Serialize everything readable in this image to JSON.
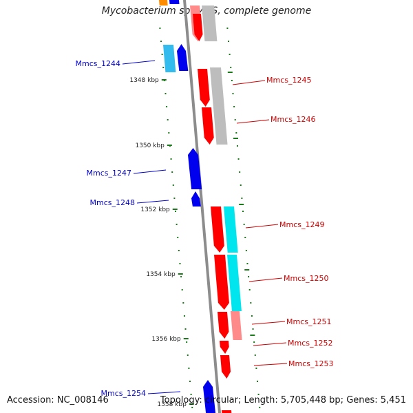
{
  "title": "Mycobacterium sp. MCS, complete genome",
  "footer": {
    "accession": "Accession: NC_008146",
    "topology": "Topology: circular;",
    "length": "Length: 5,705,448 bp;",
    "genes": "Genes: 5,451"
  },
  "colors": {
    "backbone": "#8c8c8c",
    "tick": "#1a7a1a",
    "minus_label": "#0000cc",
    "plus_label": "#cc0000",
    "gene_red": "#ff0000",
    "gene_blue": "#0000ee",
    "gene_cyan": "#00e5ee",
    "gene_grey": "#bdbdbd",
    "gene_pink": "#ff8a8a",
    "gene_orange": "#ff8c00",
    "gene_lightblue": "#33bbee"
  },
  "scale_labels": [
    {
      "kbp": 1348,
      "text": "1348 kbp"
    },
    {
      "kbp": 1350,
      "text": "1350 kbp"
    },
    {
      "kbp": 1352,
      "text": "1352 kbp"
    },
    {
      "kbp": 1354,
      "text": "1354 kbp"
    },
    {
      "kbp": 1356,
      "text": "1356 kbp"
    },
    {
      "kbp": 1358,
      "text": "1358 kbp"
    }
  ],
  "genes": [
    {
      "label": "Mmcs_1244",
      "strand": "-"
    },
    {
      "label": "Mmcs_1245",
      "strand": "+"
    },
    {
      "label": "Mmcs_1246",
      "strand": "+"
    },
    {
      "label": "Mmcs_1247",
      "strand": "-"
    },
    {
      "label": "Mmcs_1248",
      "strand": "-"
    },
    {
      "label": "Mmcs_1249",
      "strand": "+"
    },
    {
      "label": "Mmcs_1250",
      "strand": "+"
    },
    {
      "label": "Mmcs_1251",
      "strand": "+"
    },
    {
      "label": "Mmcs_1252",
      "strand": "+"
    },
    {
      "label": "Mmcs_1253",
      "strand": "+"
    },
    {
      "label": "Mmcs_1254",
      "strand": "-"
    }
  ]
}
